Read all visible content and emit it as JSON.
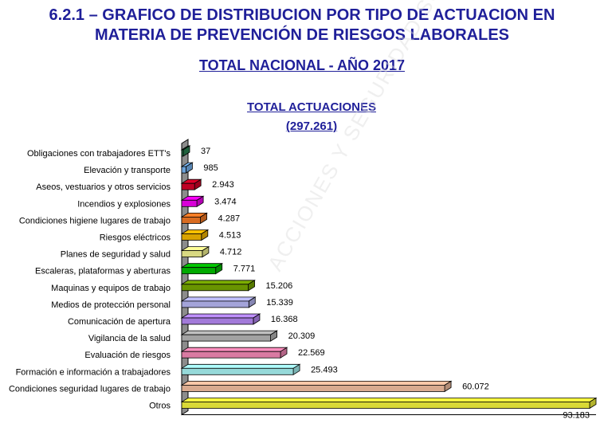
{
  "header": {
    "title_line1": "6.2.1 – GRAFICO DE DISTRIBUCION POR TIPO DE ACTUACION EN",
    "title_line2": "MATERIA DE PREVENCIÓN DE RIESGOS LABORALES",
    "subtitle": "TOTAL NACIONAL  -  AÑO 2017"
  },
  "watermark": "ACCIONES Y SEGURIDAD SOCIAL",
  "chart_data": {
    "type": "bar",
    "orientation": "horizontal",
    "title": "TOTAL ACTUACIONES",
    "subtitle": "(297.261)",
    "categories": [
      "Obligaciones con trabajadores ETT's",
      "Elevación y transporte",
      "Aseos, vestuarios y otros servicios",
      "Incendios y explosiones",
      "Condiciones higiene lugares de trabajo",
      "Riesgos eléctricos",
      "Planes de seguridad y salud",
      "Escaleras, plataformas y aberturas",
      "Maquinas y equipos de trabajo",
      "Medios de protección personal",
      "Comunicación de apertura",
      "Vigilancia de la salud",
      "Evaluación de riesgos",
      "Formación e información a trabajadores",
      "Condiciones seguridad lugares de trabajo",
      "Otros"
    ],
    "values": [
      37,
      985,
      2943,
      3474,
      4287,
      4513,
      4712,
      7771,
      15206,
      15339,
      16368,
      20309,
      22569,
      25493,
      60072,
      93183
    ],
    "value_labels": [
      "37",
      "985",
      "2.943",
      "3.474",
      "4.287",
      "4.513",
      "4.712",
      "7.771",
      "15.206",
      "15.339",
      "16.368",
      "20.309",
      "22.569",
      "25.493",
      "60.072",
      "93.183"
    ],
    "colors": [
      "#2e8b57",
      "#7fbfff",
      "#e0002a",
      "#ff00ff",
      "#ff7f27",
      "#ffc000",
      "#ffff99",
      "#00c800",
      "#7cae00",
      "#c0c0ff",
      "#bf8fff",
      "#bfbfbf",
      "#ff8fbf",
      "#b0ffff",
      "#ffc8a8",
      "#ffff40"
    ],
    "xlim": [
      0,
      93183
    ],
    "grid": false
  }
}
